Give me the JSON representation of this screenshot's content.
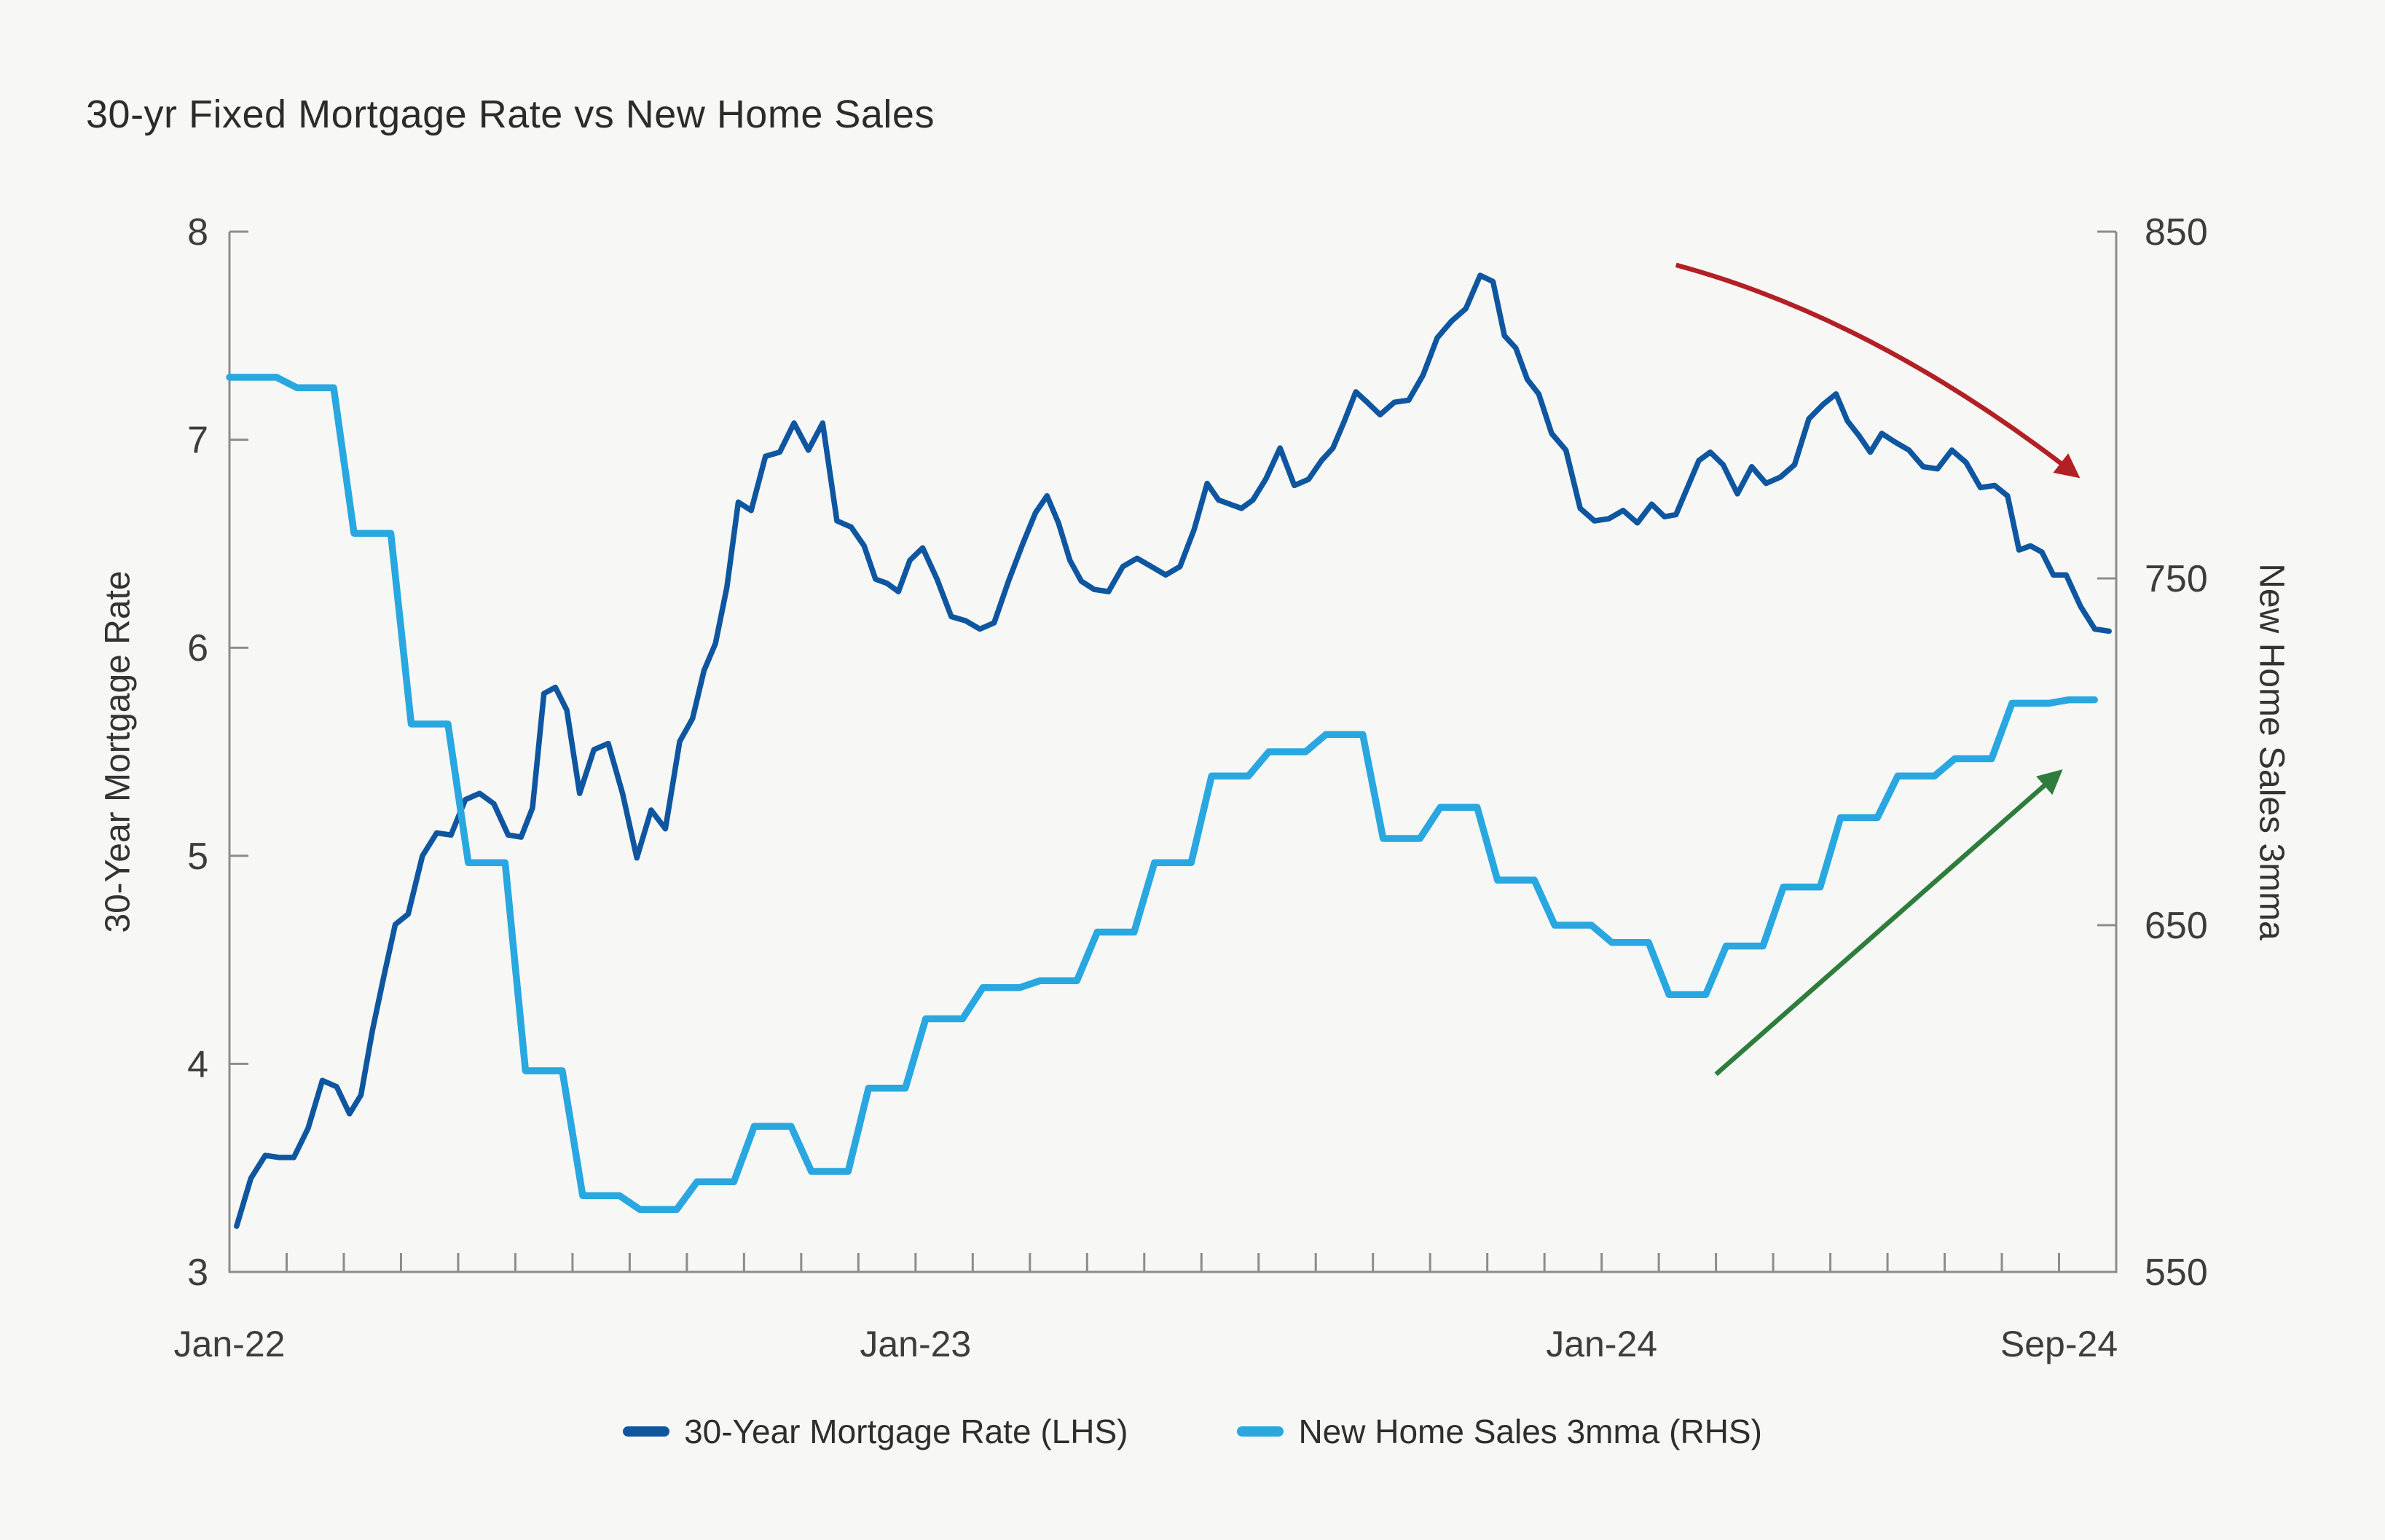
{
  "title": "30-yr Fixed Mortgage Rate vs New Home Sales",
  "colors": {
    "mortgage_line": "#0E56A0",
    "sales_line": "#29A7E0",
    "red_arrow": "#B22025",
    "green_arrow": "#2E7D3C",
    "axis": "#8C8C8C",
    "tick_text": "#3D3D3D",
    "background": "#F7F7F5"
  },
  "legend": [
    {
      "label": "30-Year Mortgage Rate (LHS)",
      "color": "#0E56A0"
    },
    {
      "label": "New Home Sales 3mma (RHS)",
      "color": "#29A7E0"
    }
  ],
  "chart_data": {
    "type": "line",
    "title": "30-yr Fixed Mortgage Rate vs New Home Sales",
    "grid": "off",
    "legend_position": "bottom",
    "x_axis": {
      "start": "Jan-22",
      "end": "Oct-24",
      "months_total": 33,
      "minor_ticks": "monthly",
      "tick_labels": [
        {
          "label": "Jan-22",
          "month": 0
        },
        {
          "label": "Jan-23",
          "month": 12
        },
        {
          "label": "Jan-24",
          "month": 24
        },
        {
          "label": "Sep-24",
          "month": 32
        }
      ]
    },
    "left_axis": {
      "label": "30-Year Mortgage Rate",
      "min": 3,
      "max": 8,
      "ticks": [
        3,
        4,
        5,
        6,
        7,
        8
      ]
    },
    "right_axis": {
      "label": "New Home Sales 3mma",
      "min": 550,
      "max": 850,
      "ticks": [
        550,
        650,
        750,
        850
      ]
    },
    "series": [
      {
        "name": "30-Year Mortgage Rate (LHS)",
        "axis": "left",
        "style": "line",
        "color": "#0E56A0",
        "frequency": "weekly",
        "weeks_per_month": [
          4,
          4,
          5,
          4,
          4,
          5,
          4,
          4,
          5,
          4,
          4,
          5,
          4,
          4,
          5,
          4,
          4,
          5,
          4,
          5,
          4,
          4,
          5,
          4,
          4,
          5,
          4,
          4,
          5,
          4,
          4,
          5,
          4
        ],
        "values": [
          3.22,
          3.45,
          3.56,
          3.55,
          3.55,
          3.69,
          3.92,
          3.89,
          3.76,
          3.85,
          4.16,
          4.42,
          4.67,
          4.72,
          5.0,
          5.11,
          5.1,
          5.27,
          5.3,
          5.25,
          5.1,
          5.09,
          5.23,
          5.78,
          5.81,
          5.7,
          5.3,
          5.51,
          5.54,
          5.3,
          4.99,
          5.22,
          5.13,
          5.55,
          5.66,
          5.89,
          6.02,
          6.29,
          6.7,
          6.66,
          6.92,
          6.94,
          7.08,
          6.95,
          7.08,
          6.61,
          6.58,
          6.49,
          6.33,
          6.31,
          6.27,
          6.42,
          6.48,
          6.33,
          6.15,
          6.13,
          6.09,
          6.12,
          6.32,
          6.5,
          6.65,
          6.73,
          6.6,
          6.42,
          6.32,
          6.28,
          6.27,
          6.39,
          6.43,
          6.39,
          6.35,
          6.39,
          6.57,
          6.79,
          6.71,
          6.69,
          6.67,
          6.71,
          6.81,
          6.96,
          6.78,
          6.81,
          6.9,
          6.96,
          7.09,
          7.23,
          7.18,
          7.12,
          7.18,
          7.19,
          7.31,
          7.49,
          7.57,
          7.63,
          7.79,
          7.76,
          7.5,
          7.44,
          7.29,
          7.22,
          7.03,
          6.95,
          6.67,
          6.61,
          6.62,
          6.66,
          6.6,
          6.69,
          6.63,
          6.64,
          6.77,
          6.9,
          6.94,
          6.88,
          6.74,
          6.87,
          6.79,
          6.82,
          6.88,
          7.1,
          7.17,
          7.22,
          7.09,
          7.02,
          6.94,
          7.03,
          6.99,
          6.95,
          6.87,
          6.86,
          6.95,
          6.89,
          6.77,
          6.78,
          6.73,
          6.47,
          6.49,
          6.46,
          6.35,
          6.35,
          6.2,
          6.09,
          6.08
        ]
      },
      {
        "name": "New Home Sales 3mma (RHS)",
        "axis": "right",
        "style": "step",
        "color": "#29A7E0",
        "frequency": "monthly",
        "months": [
          "Jan-22",
          "Feb-22",
          "Mar-22",
          "Apr-22",
          "May-22",
          "Jun-22",
          "Jul-22",
          "Aug-22",
          "Sep-22",
          "Oct-22",
          "Nov-22",
          "Dec-22",
          "Jan-23",
          "Feb-23",
          "Mar-23",
          "Apr-23",
          "May-23",
          "Jun-23",
          "Jul-23",
          "Aug-23",
          "Sep-23",
          "Oct-23",
          "Nov-23",
          "Dec-23",
          "Jan-24",
          "Feb-24",
          "Mar-24",
          "Apr-24",
          "May-24",
          "Jun-24",
          "Jul-24",
          "Aug-24",
          "Sep-24"
        ],
        "values": [
          808,
          805,
          763,
          708,
          668,
          608,
          572,
          568,
          576,
          592,
          579,
          603,
          623,
          632,
          634,
          648,
          668,
          693,
          700,
          705,
          675,
          684,
          663,
          650,
          645,
          630,
          644,
          661,
          681,
          693,
          698,
          714,
          715
        ]
      }
    ],
    "annotations": [
      {
        "type": "arrow",
        "name": "rates-falling-arrow",
        "color": "#B22025",
        "axis": "left",
        "from": {
          "month": 25.3,
          "value": 7.84
        },
        "control": {
          "month": 28.8,
          "value": 7.58
        },
        "to": {
          "month": 32.3,
          "value": 6.83
        }
      },
      {
        "type": "arrow",
        "name": "sales-rising-arrow",
        "color": "#2E7D3C",
        "axis": "right",
        "from": {
          "month": 26.0,
          "value": 607
        },
        "to": {
          "month": 32.0,
          "value": 694
        }
      }
    ]
  }
}
